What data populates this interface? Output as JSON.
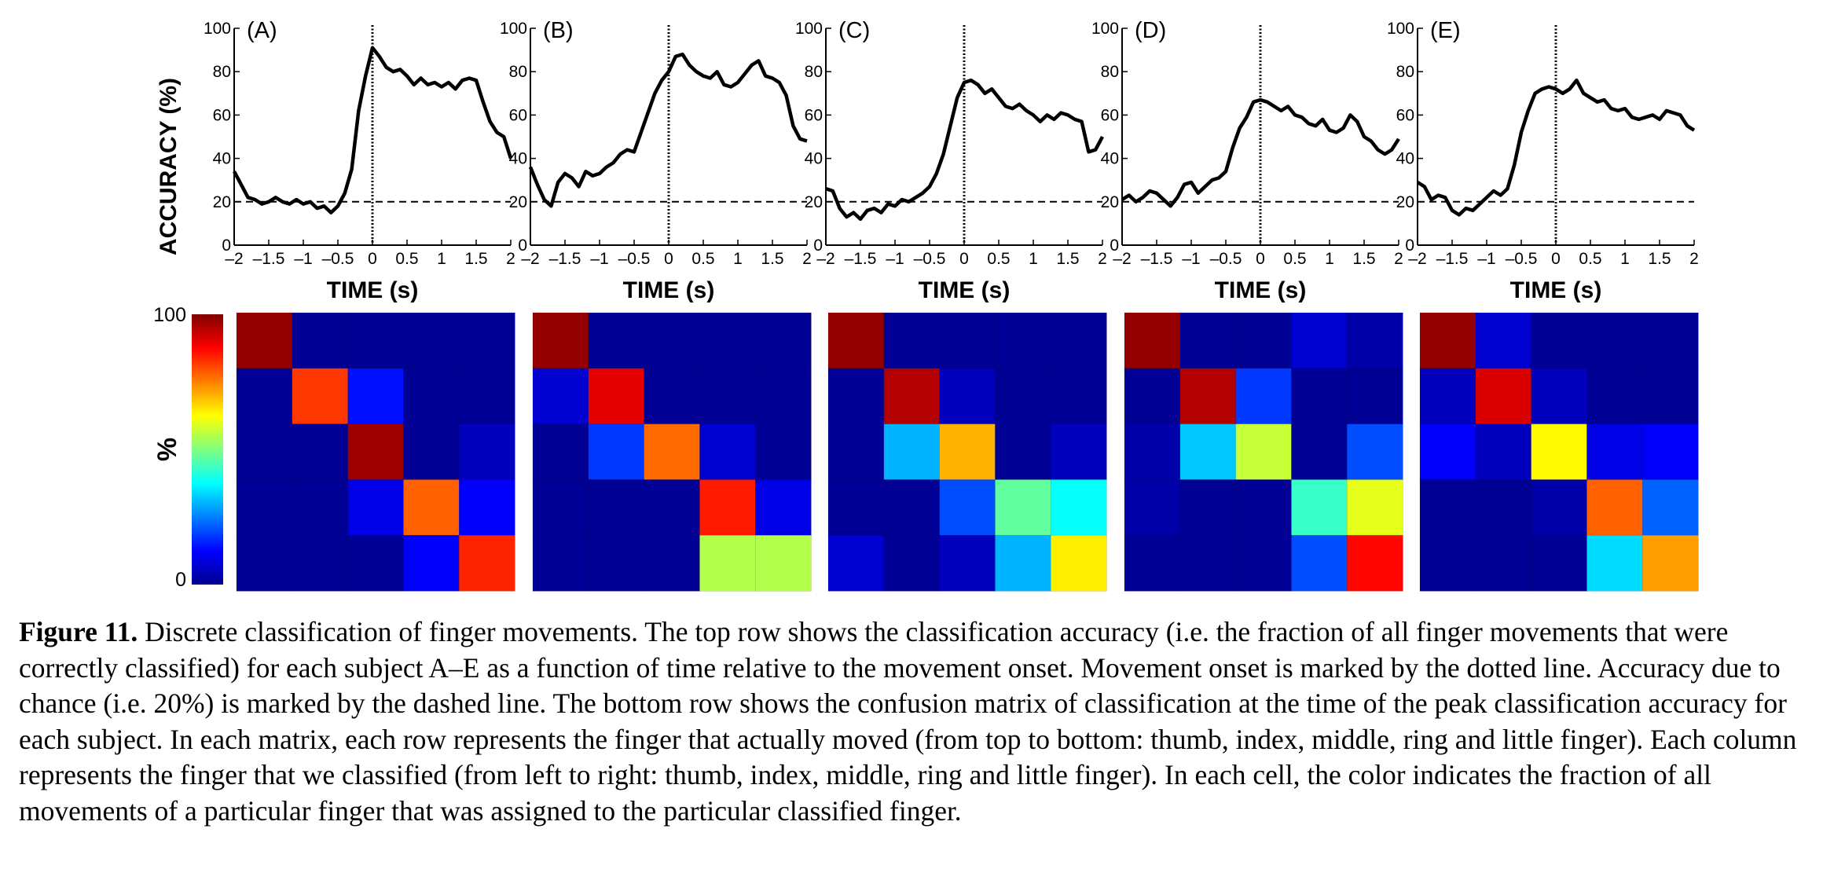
{
  "figure": {
    "ylabel": "ACCURACY (%)",
    "xlabel": "TIME (s)",
    "colorbar_label": "%",
    "colorbar_ticks": [
      "100",
      "0"
    ],
    "x_tick_labels": [
      "–2",
      "–1.5",
      "–1",
      "–0.5",
      "0",
      "0.5",
      "1",
      "1.5",
      "2"
    ],
    "y_tick_labels": [
      "0",
      "20",
      "40",
      "60",
      "80",
      "100"
    ]
  },
  "chart_data": [
    {
      "type": "line",
      "panel": "(A)",
      "xlabel": "TIME (s)",
      "ylabel": "ACCURACY (%)",
      "xlim": [
        -2,
        2
      ],
      "ylim": [
        0,
        100
      ],
      "chance_level": 20,
      "onset_time": 0,
      "x": [
        -2,
        -1.9,
        -1.8,
        -1.7,
        -1.6,
        -1.5,
        -1.4,
        -1.3,
        -1.2,
        -1.1,
        -1,
        -0.9,
        -0.8,
        -0.7,
        -0.6,
        -0.5,
        -0.4,
        -0.3,
        -0.2,
        -0.1,
        0,
        0.1,
        0.2,
        0.3,
        0.4,
        0.5,
        0.6,
        0.7,
        0.8,
        0.9,
        1,
        1.1,
        1.2,
        1.3,
        1.4,
        1.5,
        1.6,
        1.7,
        1.8,
        1.9,
        2
      ],
      "series": [
        {
          "values": [
            34,
            28,
            22,
            21,
            19,
            20,
            22,
            20,
            19,
            21,
            19,
            20,
            17,
            18,
            15,
            18,
            24,
            35,
            62,
            78,
            91,
            87,
            82,
            80,
            81,
            78,
            74,
            77,
            74,
            75,
            73,
            75,
            72,
            76,
            77,
            76,
            66,
            57,
            52,
            50,
            40
          ]
        }
      ]
    },
    {
      "type": "line",
      "panel": "(B)",
      "xlabel": "TIME (s)",
      "xlim": [
        -2,
        2
      ],
      "ylim": [
        0,
        100
      ],
      "chance_level": 20,
      "onset_time": 0,
      "x": [
        -2,
        -1.9,
        -1.8,
        -1.7,
        -1.6,
        -1.5,
        -1.4,
        -1.3,
        -1.2,
        -1.1,
        -1,
        -0.9,
        -0.8,
        -0.7,
        -0.6,
        -0.5,
        -0.4,
        -0.3,
        -0.2,
        -0.1,
        0,
        0.1,
        0.2,
        0.3,
        0.4,
        0.5,
        0.6,
        0.7,
        0.8,
        0.9,
        1,
        1.1,
        1.2,
        1.3,
        1.4,
        1.5,
        1.6,
        1.7,
        1.8,
        1.9,
        2
      ],
      "series": [
        {
          "values": [
            36,
            28,
            21,
            18,
            29,
            33,
            31,
            27,
            34,
            32,
            33,
            36,
            38,
            42,
            44,
            43,
            52,
            61,
            70,
            76,
            80,
            87,
            88,
            83,
            80,
            78,
            77,
            80,
            74,
            73,
            75,
            79,
            83,
            85,
            78,
            77,
            75,
            69,
            55,
            49,
            48
          ]
        }
      ]
    },
    {
      "type": "line",
      "panel": "(C)",
      "xlabel": "TIME (s)",
      "xlim": [
        -2,
        2
      ],
      "ylim": [
        0,
        100
      ],
      "chance_level": 20,
      "onset_time": 0,
      "x": [
        -2,
        -1.9,
        -1.8,
        -1.7,
        -1.6,
        -1.5,
        -1.4,
        -1.3,
        -1.2,
        -1.1,
        -1,
        -0.9,
        -0.8,
        -0.7,
        -0.6,
        -0.5,
        -0.4,
        -0.3,
        -0.2,
        -0.1,
        0,
        0.1,
        0.2,
        0.3,
        0.4,
        0.5,
        0.6,
        0.7,
        0.8,
        0.9,
        1,
        1.1,
        1.2,
        1.3,
        1.4,
        1.5,
        1.6,
        1.7,
        1.8,
        1.9,
        2
      ],
      "series": [
        {
          "values": [
            26,
            25,
            17,
            13,
            15,
            12,
            16,
            17,
            15,
            19,
            18,
            21,
            20,
            22,
            24,
            27,
            33,
            42,
            55,
            68,
            75,
            76,
            74,
            70,
            72,
            68,
            64,
            63,
            65,
            62,
            60,
            57,
            60,
            58,
            61,
            60,
            58,
            57,
            43,
            44,
            50
          ]
        }
      ]
    },
    {
      "type": "line",
      "panel": "(D)",
      "xlabel": "TIME (s)",
      "xlim": [
        -2,
        2
      ],
      "ylim": [
        0,
        100
      ],
      "chance_level": 20,
      "onset_time": 0,
      "x": [
        -2,
        -1.9,
        -1.8,
        -1.7,
        -1.6,
        -1.5,
        -1.4,
        -1.3,
        -1.2,
        -1.1,
        -1,
        -0.9,
        -0.8,
        -0.7,
        -0.6,
        -0.5,
        -0.4,
        -0.3,
        -0.2,
        -0.1,
        0,
        0.1,
        0.2,
        0.3,
        0.4,
        0.5,
        0.6,
        0.7,
        0.8,
        0.9,
        1,
        1.1,
        1.2,
        1.3,
        1.4,
        1.5,
        1.6,
        1.7,
        1.8,
        1.9,
        2
      ],
      "series": [
        {
          "values": [
            21,
            23,
            20,
            22,
            25,
            24,
            21,
            18,
            22,
            28,
            29,
            24,
            27,
            30,
            31,
            34,
            45,
            54,
            59,
            66,
            67,
            66,
            64,
            62,
            64,
            60,
            59,
            56,
            55,
            58,
            53,
            52,
            54,
            60,
            57,
            50,
            48,
            44,
            42,
            44,
            49
          ]
        }
      ]
    },
    {
      "type": "line",
      "panel": "(E)",
      "xlabel": "TIME (s)",
      "xlim": [
        -2,
        2
      ],
      "ylim": [
        0,
        100
      ],
      "chance_level": 20,
      "onset_time": 0,
      "x": [
        -2,
        -1.9,
        -1.8,
        -1.7,
        -1.6,
        -1.5,
        -1.4,
        -1.3,
        -1.2,
        -1.1,
        -1,
        -0.9,
        -0.8,
        -0.7,
        -0.6,
        -0.5,
        -0.4,
        -0.3,
        -0.2,
        -0.1,
        0,
        0.1,
        0.2,
        0.3,
        0.4,
        0.5,
        0.6,
        0.7,
        0.8,
        0.9,
        1,
        1.1,
        1.2,
        1.3,
        1.4,
        1.5,
        1.6,
        1.7,
        1.8,
        1.9,
        2
      ],
      "series": [
        {
          "values": [
            29,
            27,
            21,
            23,
            22,
            16,
            14,
            17,
            16,
            19,
            22,
            25,
            23,
            26,
            37,
            52,
            62,
            70,
            72,
            73,
            72,
            70,
            72,
            76,
            70,
            68,
            66,
            67,
            63,
            62,
            63,
            59,
            58,
            59,
            60,
            58,
            62,
            61,
            60,
            55,
            53
          ]
        }
      ]
    },
    {
      "type": "heatmap",
      "panel": "(A)",
      "rows": [
        "thumb",
        "index",
        "middle",
        "ring",
        "little"
      ],
      "cols": [
        "thumb",
        "index",
        "middle",
        "ring",
        "little"
      ],
      "colorbar_label": "%",
      "vmin": 0,
      "vmax": 100,
      "values": [
        [
          98,
          2,
          2,
          2,
          2
        ],
        [
          2,
          82,
          14,
          2,
          2
        ],
        [
          2,
          2,
          97,
          2,
          6
        ],
        [
          2,
          2,
          10,
          78,
          12
        ],
        [
          2,
          2,
          2,
          12,
          84
        ]
      ]
    },
    {
      "type": "heatmap",
      "panel": "(B)",
      "rows": [
        "thumb",
        "index",
        "middle",
        "ring",
        "little"
      ],
      "cols": [
        "thumb",
        "index",
        "middle",
        "ring",
        "little"
      ],
      "vmin": 0,
      "vmax": 100,
      "values": [
        [
          98,
          2,
          2,
          2,
          2
        ],
        [
          8,
          90,
          2,
          2,
          2
        ],
        [
          2,
          18,
          77,
          8,
          2
        ],
        [
          2,
          2,
          2,
          85,
          10
        ],
        [
          2,
          2,
          2,
          55,
          55
        ]
      ]
    },
    {
      "type": "heatmap",
      "panel": "(C)",
      "rows": [
        "thumb",
        "index",
        "middle",
        "ring",
        "little"
      ],
      "cols": [
        "thumb",
        "index",
        "middle",
        "ring",
        "little"
      ],
      "vmin": 0,
      "vmax": 100,
      "values": [
        [
          98,
          2,
          2,
          2,
          2
        ],
        [
          2,
          95,
          6,
          2,
          2
        ],
        [
          2,
          30,
          70,
          2,
          6
        ],
        [
          2,
          2,
          20,
          47,
          38
        ],
        [
          8,
          2,
          6,
          30,
          64
        ]
      ]
    },
    {
      "type": "heatmap",
      "panel": "(D)",
      "rows": [
        "thumb",
        "index",
        "middle",
        "ring",
        "little"
      ],
      "cols": [
        "thumb",
        "index",
        "middle",
        "ring",
        "little"
      ],
      "vmin": 0,
      "vmax": 100,
      "values": [
        [
          98,
          2,
          2,
          8,
          4
        ],
        [
          2,
          95,
          18,
          2,
          2
        ],
        [
          4,
          32,
          57,
          2,
          20
        ],
        [
          4,
          2,
          2,
          43,
          60
        ],
        [
          2,
          2,
          2,
          20,
          87
        ]
      ]
    },
    {
      "type": "heatmap",
      "panel": "(E)",
      "rows": [
        "thumb",
        "index",
        "middle",
        "ring",
        "little"
      ],
      "cols": [
        "thumb",
        "index",
        "middle",
        "ring",
        "little"
      ],
      "vmin": 0,
      "vmax": 100,
      "values": [
        [
          98,
          8,
          2,
          2,
          2
        ],
        [
          6,
          91,
          6,
          2,
          2
        ],
        [
          12,
          6,
          63,
          10,
          12
        ],
        [
          2,
          2,
          4,
          78,
          22
        ],
        [
          2,
          2,
          2,
          34,
          72
        ]
      ]
    }
  ],
  "caption": {
    "label": "Figure 11.",
    "text": " Discrete classification of finger movements. The top row shows the classification accuracy (i.e. the fraction of all finger movements that were correctly classified) for each subject A–E as a function of time relative to the movement onset. Movement onset is marked by the dotted line. Accuracy due to chance (i.e. 20%) is marked by the dashed line. The bottom row shows the confusion matrix of classification at the time of the peak classification accuracy for each subject. In each matrix, each row represents the finger that actually moved (from top to bottom: thumb, index, middle, ring and little finger). Each column represents the finger that we classified (from left to right: thumb, index, middle, ring and little finger). In each cell, the color indicates the fraction of all movements of a particular finger that was assigned to the particular classified finger."
  }
}
